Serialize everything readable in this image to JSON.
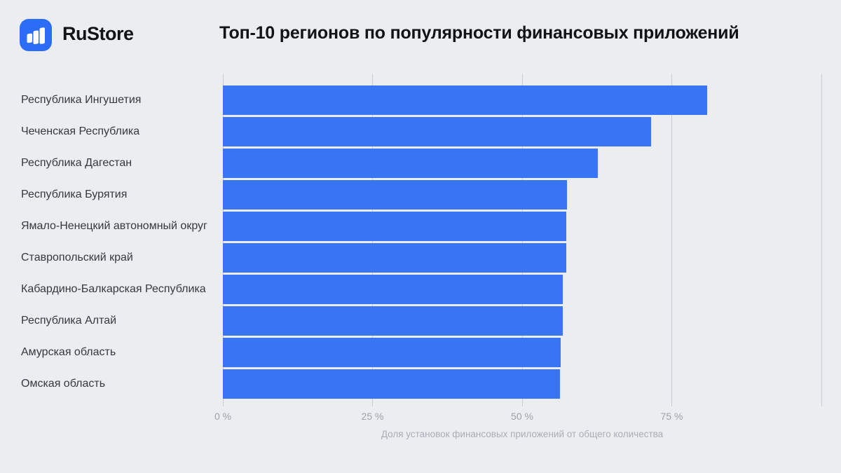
{
  "header": {
    "brand": "RuStore"
  },
  "colors": {
    "background": "#EBEDF0",
    "bar": "#3875F5",
    "logo_blue": "#2B6DF6",
    "grid": "#C9CCD3",
    "label": "#35383F",
    "title": "#121316",
    "tick": "#9CA1AB",
    "caption": "#A8ADB7"
  },
  "chart_data": {
    "type": "bar",
    "orientation": "horizontal",
    "title": "Топ-10 регионов по популярности финансовых приложений",
    "xlabel": "Доля установок финансовых приложений от общего количества",
    "categories": [
      "Республика Ингушетия",
      "Чеченская Республика",
      "Республика Дагестан",
      "Республика Бурятия",
      "Ямало-Ненецкий автономный округ",
      "Ставропольский край",
      "Кабардино-Балкарская Республика",
      "Республика Алтай",
      "Амурская область",
      "Омская область"
    ],
    "values": [
      80.9,
      71.5,
      62.6,
      57.5,
      57.4,
      57.4,
      56.8,
      56.8,
      56.4,
      56.3
    ],
    "unit": "%",
    "xlim": [
      0,
      100
    ],
    "x_ticks": [
      {
        "value": 0,
        "label": "0 %"
      },
      {
        "value": 25,
        "label": "25 %"
      },
      {
        "value": 50,
        "label": "50 %"
      },
      {
        "value": 75,
        "label": "75 %"
      },
      {
        "value": 100,
        "label": ""
      }
    ],
    "grid": "vertical",
    "legend": "none"
  }
}
